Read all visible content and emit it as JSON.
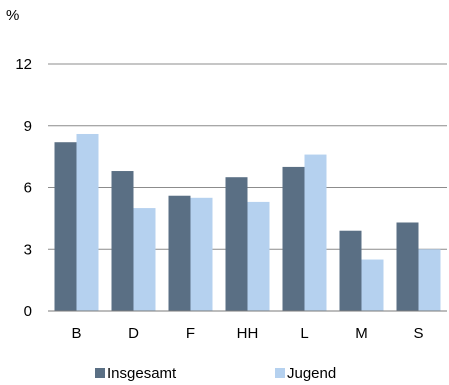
{
  "chart_data": {
    "type": "bar",
    "unit_label": "%",
    "categories": [
      "B",
      "D",
      "F",
      "HH",
      "L",
      "M",
      "S"
    ],
    "series": [
      {
        "name": "Insgesamt",
        "color": "#5a6f84",
        "values": [
          8.2,
          6.8,
          5.6,
          6.5,
          7.0,
          3.9,
          4.3
        ]
      },
      {
        "name": "Jugend",
        "color": "#b5d1ef",
        "values": [
          8.6,
          5.0,
          5.5,
          5.3,
          7.6,
          2.5,
          3.0
        ]
      }
    ],
    "ylim": [
      0,
      12
    ],
    "yticks": [
      "0",
      "3",
      "6",
      "9",
      "12"
    ],
    "grid": true,
    "legend_position": "bottom"
  }
}
